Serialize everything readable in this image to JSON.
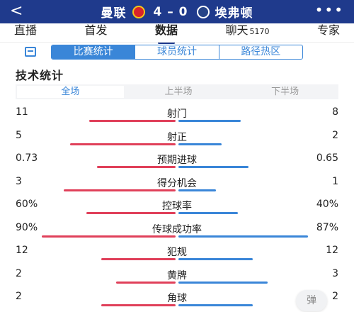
{
  "header": {
    "home_team": "曼联",
    "away_team": "埃弗顿",
    "score": "4 – 0",
    "back_glyph": "<",
    "more_glyph": "•••",
    "home_crest_icon": "manchester-united-crest-icon",
    "away_crest_icon": "everton-crest-icon"
  },
  "tabs": [
    {
      "label": "直播"
    },
    {
      "label": "首发"
    },
    {
      "label": "数据",
      "active": true
    },
    {
      "label": "聊天",
      "count": "5170"
    },
    {
      "label": "专家"
    }
  ],
  "segments": [
    {
      "label": "比赛统计",
      "active": true
    },
    {
      "label": "球员统计"
    },
    {
      "label": "路径热区"
    }
  ],
  "section_title": "技术统计",
  "periods": [
    {
      "label": "全场",
      "active": true
    },
    {
      "label": "上半场"
    },
    {
      "label": "下半场"
    }
  ],
  "stats": [
    {
      "label": "射门",
      "home": "11",
      "away": "8",
      "home_share": 0.58,
      "away_share": 0.42
    },
    {
      "label": "射正",
      "home": "5",
      "away": "2",
      "home_share": 0.71,
      "away_share": 0.29
    },
    {
      "label": "预期进球",
      "home": "0.73",
      "away": "0.65",
      "home_share": 0.53,
      "away_share": 0.47
    },
    {
      "label": "得分机会",
      "home": "3",
      "away": "1",
      "home_share": 0.75,
      "away_share": 0.25
    },
    {
      "label": "控球率",
      "home": "60%",
      "away": "40%",
      "home_share": 0.6,
      "away_share": 0.4
    },
    {
      "label": "传球成功率",
      "home": "90%",
      "away": "87%",
      "home_share": 0.9,
      "away_share": 0.87
    },
    {
      "label": "犯规",
      "home": "12",
      "away": "12",
      "home_share": 0.5,
      "away_share": 0.5
    },
    {
      "label": "黄牌",
      "home": "2",
      "away": "3",
      "home_share": 0.4,
      "away_share": 0.6
    },
    {
      "label": "角球",
      "home": "2",
      "away": "2",
      "home_share": 0.5,
      "away_share": 0.5
    }
  ],
  "danmu_button": "弹",
  "colors": {
    "header_bg": "#1f3a8c",
    "accent": "#3a86d8",
    "home_bar": "#e0405a",
    "away_bar": "#3a86d8"
  }
}
